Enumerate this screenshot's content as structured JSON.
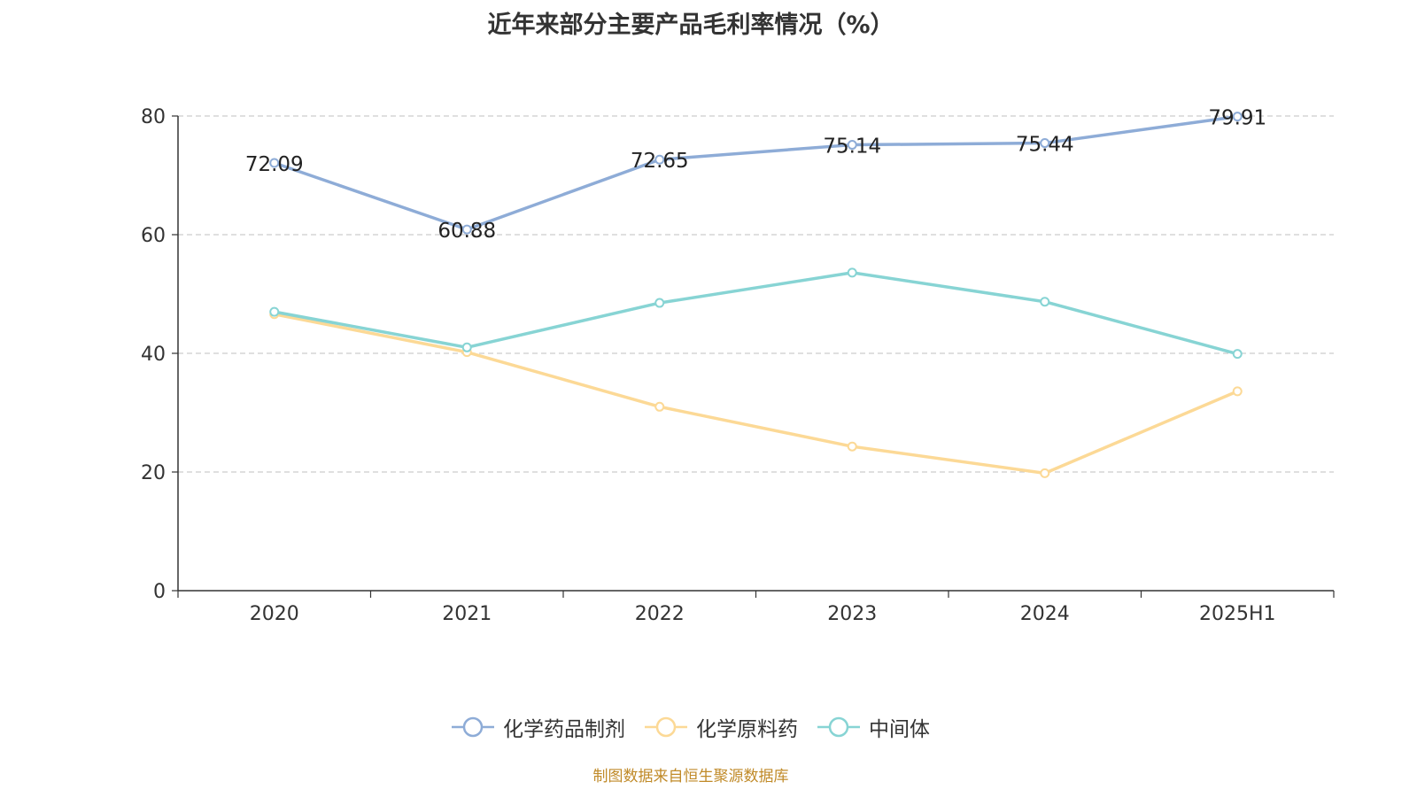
{
  "chart_data": {
    "type": "line",
    "title": "近年来部分主要产品毛利率情况（%）",
    "categories": [
      "2020",
      "2021",
      "2022",
      "2023",
      "2024",
      "2025H1"
    ],
    "ylim": [
      0,
      80
    ],
    "yticks": [
      0,
      20,
      40,
      60,
      80
    ],
    "grid": true,
    "legend_position": "bottom",
    "series": [
      {
        "name": "化学药品制剂",
        "color": "#8eacd7",
        "values": [
          72.09,
          60.88,
          72.65,
          75.14,
          75.44,
          79.91
        ],
        "show_labels": true
      },
      {
        "name": "化学原料药",
        "color": "#fcd996",
        "values": [
          46.6,
          40.2,
          31.0,
          24.3,
          19.8,
          33.6
        ],
        "show_labels": false
      },
      {
        "name": "中间体",
        "color": "#87d4d4",
        "values": [
          47.0,
          41.0,
          48.5,
          53.6,
          48.7,
          39.9
        ],
        "show_labels": false
      }
    ],
    "source_note": "制图数据来自恒生聚源数据库"
  }
}
